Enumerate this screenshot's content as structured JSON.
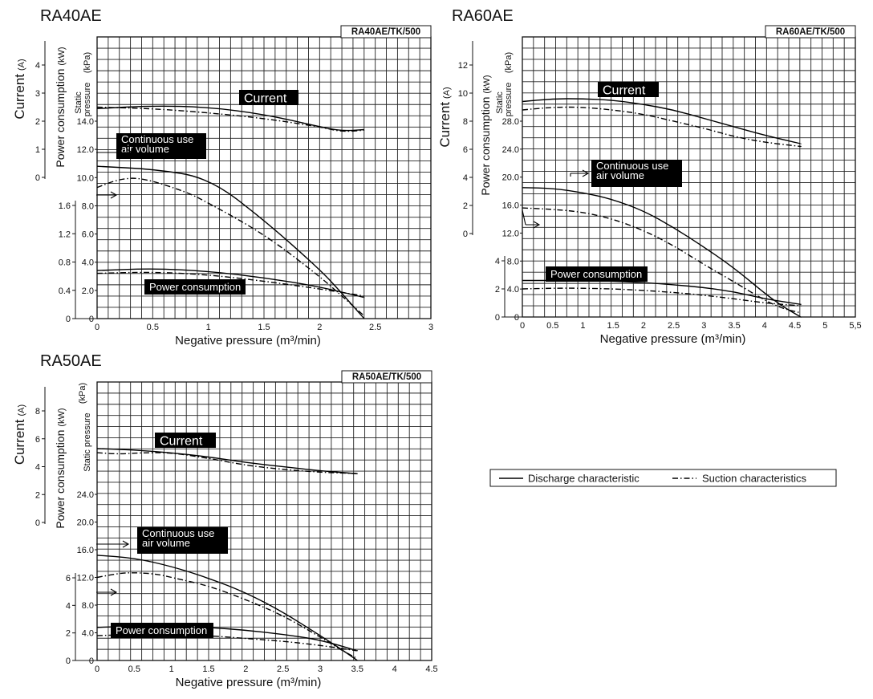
{
  "chart_data": [
    {
      "type": "line",
      "title": "RA40AE",
      "model_code": "RA40AE/TK/500",
      "xlabel": "Negative pressure (m³/min)",
      "ylabels": {
        "current": "Current",
        "current_unit": "(A)",
        "power": "Power consumption",
        "power_unit": "(kW)",
        "static_a": "Static",
        "static_b": "pressure",
        "static_unit": "(kPa)"
      },
      "x_ticks": [
        "0",
        "0.5",
        "1",
        "1.5",
        "2",
        "2.5",
        "3"
      ],
      "xlim": [
        0,
        3
      ],
      "current_ticks": [
        "0",
        "1",
        "2",
        "3",
        "4"
      ],
      "power_ticks": [
        "0",
        "0.4",
        "0.8",
        "1.2",
        "1.6"
      ],
      "pressure_ticks": [
        "0",
        "2.0",
        "4.0",
        "6.0",
        "8.0",
        "10.0",
        "12.0",
        "14.0"
      ],
      "labels": {
        "current": "Current",
        "continuous_a": "Continuous use",
        "continuous_b": "air volume",
        "power": "Power consumption"
      },
      "series": [
        {
          "name": "Current",
          "style": "discharge",
          "unit": "A",
          "x": [
            0,
            0.5,
            1.0,
            1.5,
            2.0,
            2.2,
            2.4
          ],
          "y": [
            2.45,
            2.55,
            2.5,
            2.25,
            1.8,
            1.65,
            1.7
          ]
        },
        {
          "name": "Current",
          "style": "suction",
          "unit": "A",
          "x": [
            0,
            0.5,
            1.0,
            1.5,
            2.0,
            2.2,
            2.4
          ],
          "y": [
            2.5,
            2.45,
            2.3,
            2.1,
            1.8,
            1.62,
            1.68
          ]
        },
        {
          "name": "Static pressure",
          "style": "discharge",
          "unit": "kPa",
          "x": [
            0,
            0.5,
            1.0,
            1.5,
            2.0,
            2.2,
            2.4
          ],
          "y": [
            10.8,
            10.6,
            10.0,
            7.0,
            3.5,
            1.8,
            0
          ]
        },
        {
          "name": "Static pressure",
          "style": "suction",
          "unit": "kPa",
          "x": [
            0,
            0.2,
            0.4,
            0.8,
            1.0,
            1.5,
            2.0,
            2.2,
            2.4
          ],
          "y": [
            9.3,
            9.9,
            10.0,
            9.0,
            8.2,
            6.0,
            3.0,
            1.6,
            0.2
          ]
        },
        {
          "name": "Power consumption",
          "style": "discharge",
          "unit": "kW",
          "x": [
            0,
            0.5,
            1.0,
            1.5,
            2.0,
            2.4
          ],
          "y": [
            0.68,
            0.71,
            0.67,
            0.58,
            0.45,
            0.3
          ]
        },
        {
          "name": "Power consumption",
          "style": "suction",
          "unit": "kW",
          "x": [
            0,
            0.5,
            1.0,
            1.5,
            2.0,
            2.4
          ],
          "y": [
            0.64,
            0.66,
            0.62,
            0.53,
            0.42,
            0.32
          ]
        }
      ]
    },
    {
      "type": "line",
      "title": "RA60AE",
      "model_code": "RA60AE/TK/500",
      "xlabel": "Negative pressure (m³/min)",
      "ylabels": {
        "current": "Current",
        "current_unit": "(A)",
        "power": "Power consumption",
        "power_unit": "(kW)",
        "static_a": "Static",
        "static_b": "pressure",
        "static_unit": "(kPa)"
      },
      "x_ticks": [
        "0",
        "0.5",
        "1",
        "1.5",
        "2",
        "2.5",
        "3",
        "3.5",
        "4",
        "4.5",
        "5",
        "5,5"
      ],
      "xlim": [
        0,
        5.5
      ],
      "current_ticks": [
        "0",
        "2",
        "4",
        "6",
        "8",
        "10",
        "12"
      ],
      "power_ticks": [
        "0",
        "2",
        "4"
      ],
      "pressure_ticks": [
        "0",
        "4.0",
        "8.0",
        "12.0",
        "16.0",
        "20.0",
        "24.0",
        "28.0"
      ],
      "labels": {
        "current": "Current",
        "continuous_a": "Continuous use",
        "continuous_b": "air volume",
        "power": "Power consumption"
      },
      "series": [
        {
          "name": "Current",
          "style": "discharge",
          "unit": "A",
          "x": [
            0,
            0.5,
            1.0,
            1.5,
            2.0,
            2.5,
            3.0,
            3.5,
            4.0,
            4.6
          ],
          "y": [
            9.4,
            9.6,
            9.6,
            9.5,
            9.2,
            8.8,
            8.2,
            7.6,
            7.0,
            6.4
          ]
        },
        {
          "name": "Current",
          "style": "suction",
          "unit": "A",
          "x": [
            0,
            0.5,
            1.0,
            1.5,
            2.0,
            2.5,
            3.0,
            3.5,
            4.0,
            4.6
          ],
          "y": [
            8.8,
            9.0,
            9.0,
            8.8,
            8.5,
            8.0,
            7.5,
            6.9,
            6.5,
            6.2
          ]
        },
        {
          "name": "Static pressure",
          "style": "discharge",
          "unit": "kPa",
          "x": [
            0,
            0.5,
            1.0,
            1.5,
            2.0,
            2.5,
            3.0,
            3.5,
            4.0,
            4.3,
            4.6
          ],
          "y": [
            18.5,
            18.4,
            17.8,
            16.8,
            15.2,
            12.8,
            10.0,
            7.0,
            3.4,
            1.5,
            0
          ]
        },
        {
          "name": "Static pressure",
          "style": "suction",
          "unit": "kPa",
          "x": [
            0,
            0.5,
            1.0,
            1.5,
            2.0,
            2.5,
            3.0,
            3.5,
            4.0,
            4.3,
            4.6
          ],
          "y": [
            15.6,
            15.4,
            15.0,
            14.0,
            12.4,
            10.2,
            7.5,
            5.0,
            2.4,
            1.2,
            0.6
          ]
        },
        {
          "name": "Power consumption",
          "style": "discharge",
          "unit": "kW",
          "x": [
            0,
            0.5,
            1.0,
            1.5,
            2.0,
            2.5,
            3.0,
            3.5,
            4.0,
            4.6
          ],
          "y": [
            2.6,
            2.6,
            2.6,
            2.55,
            2.45,
            2.3,
            2.1,
            1.8,
            1.3,
            0.9
          ]
        },
        {
          "name": "Power consumption",
          "style": "suction",
          "unit": "kW",
          "x": [
            0,
            0.5,
            1.0,
            1.5,
            2.0,
            2.5,
            3.0,
            3.5,
            4.0,
            4.6
          ],
          "y": [
            2.0,
            2.05,
            2.05,
            2.0,
            1.9,
            1.75,
            1.55,
            1.3,
            1.0,
            0.8
          ]
        }
      ]
    },
    {
      "type": "line",
      "title": "RA50AE",
      "model_code": "RA50AE/TK/500",
      "xlabel": "Negative pressure (m³/min)",
      "ylabels": {
        "current": "Current",
        "current_unit": "(A)",
        "power": "Power consumption",
        "power_unit": "(kW)",
        "static_a": "Static pressure",
        "static_b": "",
        "static_unit": "(kPa)"
      },
      "x_ticks": [
        "0",
        "0.5",
        "1",
        "1.5",
        "2",
        "2.5",
        "3",
        "3.5",
        "4",
        "4.5"
      ],
      "xlim": [
        0,
        4.5
      ],
      "current_ticks": [
        "0",
        "2",
        "4",
        "6",
        "8"
      ],
      "power_ticks": [
        "0",
        "2",
        "4",
        "6"
      ],
      "pressure_ticks": [
        "0",
        "4.0",
        "8.0",
        "12.0",
        "16.0",
        "20.0",
        "24.0"
      ],
      "labels": {
        "current": "Current",
        "continuous_a": "Continuous use",
        "continuous_b": "air volume",
        "power": "Power consumption"
      },
      "series": [
        {
          "name": "Current",
          "style": "discharge",
          "unit": "A",
          "x": [
            0,
            0.5,
            1.0,
            1.5,
            2.0,
            2.5,
            3.0,
            3.5
          ],
          "y": [
            5.3,
            5.2,
            5.0,
            4.7,
            4.3,
            4.0,
            3.7,
            3.5
          ]
        },
        {
          "name": "Current",
          "style": "suction",
          "unit": "A",
          "x": [
            0,
            0.3,
            0.6,
            1.0,
            1.5,
            2.0,
            2.5,
            3.0,
            3.5
          ],
          "y": [
            5.0,
            4.9,
            5.0,
            5.0,
            4.6,
            4.1,
            3.8,
            3.6,
            3.5
          ]
        },
        {
          "name": "Static pressure",
          "style": "discharge",
          "unit": "kPa",
          "x": [
            0,
            0.5,
            1.0,
            1.5,
            2.0,
            2.5,
            3.0,
            3.3,
            3.5
          ],
          "y": [
            15.2,
            14.8,
            13.6,
            11.9,
            9.8,
            7.0,
            3.6,
            1.5,
            0
          ]
        },
        {
          "name": "Static pressure",
          "style": "suction",
          "unit": "kPa",
          "x": [
            0,
            0.3,
            0.5,
            0.8,
            1.0,
            1.5,
            2.0,
            2.5,
            3.0,
            3.3,
            3.5
          ],
          "y": [
            12.0,
            12.6,
            12.7,
            12.5,
            12.0,
            10.8,
            8.8,
            6.5,
            3.4,
            1.4,
            0.3
          ]
        },
        {
          "name": "Power consumption",
          "style": "discharge",
          "unit": "kW",
          "x": [
            0,
            0.5,
            1.0,
            1.5,
            2.0,
            2.5,
            3.0,
            3.5
          ],
          "y": [
            2.4,
            2.5,
            2.5,
            2.4,
            2.2,
            1.9,
            1.5,
            0.7
          ]
        },
        {
          "name": "Power consumption",
          "style": "suction",
          "unit": "kW",
          "x": [
            0,
            0.5,
            1.0,
            1.5,
            2.0,
            2.5,
            3.0,
            3.5
          ],
          "y": [
            1.8,
            1.9,
            1.9,
            1.8,
            1.6,
            1.4,
            1.1,
            0.7
          ]
        }
      ]
    }
  ],
  "legend": {
    "discharge": "Discharge characteristic",
    "suction": "Suction characteristics"
  }
}
